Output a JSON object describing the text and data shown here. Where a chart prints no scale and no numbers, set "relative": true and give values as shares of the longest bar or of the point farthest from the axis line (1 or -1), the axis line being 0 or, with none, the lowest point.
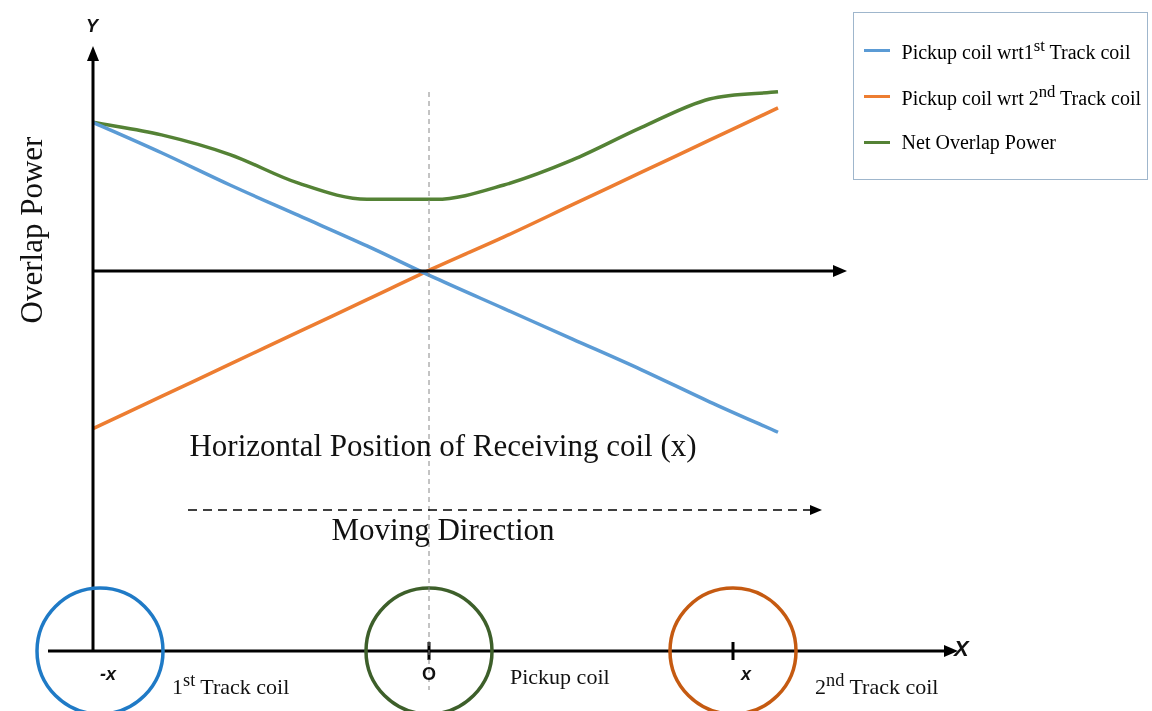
{
  "chart_data": {
    "type": "line",
    "relative": true,
    "marker": "none",
    "legend": "top right",
    "tick_labels": false,
    "xlabel": "Horizontal Position of Receiving coil (x)",
    "ylabel": "Overlap  Power",
    "categories": [
      null,
      null,
      null,
      null,
      null,
      null,
      null,
      null,
      null,
      null,
      null
    ],
    "series": [
      {
        "name": "Pickup coil wrt1$^{st}$ Track coil",
        "color": "#5b9bd5",
        "values": [
          0.83,
          0.66,
          0.48,
          0.31,
          0.14,
          -0.04,
          -0.21,
          -0.38,
          -0.55,
          -0.73,
          -0.9
        ]
      },
      {
        "name": "Pickup coil wrt 2$^{nd}$ Track coil",
        "color": "#ed7d31",
        "values": [
          -0.88,
          -0.7,
          -0.52,
          -0.34,
          -0.16,
          0.02,
          0.19,
          0.37,
          0.55,
          0.73,
          0.91
        ]
      },
      {
        "name": "Net Overlap Power",
        "color": "#548235",
        "values": [
          0.83,
          0.76,
          0.65,
          0.49,
          0.4,
          0.4,
          0.48,
          0.62,
          0.8,
          0.96,
          1
        ]
      }
    ],
    "annotations": [
      "Moving Direction",
      "-x",
      "O",
      "x",
      "1$^{st}$ Track coil",
      "Pickup coil",
      "2$^{nd}$ Track coil",
      "X",
      "Y"
    ]
  }
}
